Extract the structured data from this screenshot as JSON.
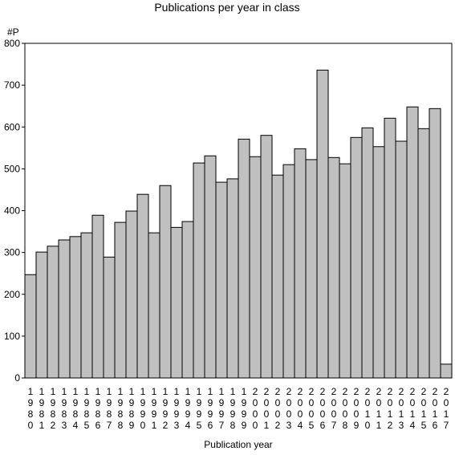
{
  "chart_data": {
    "type": "bar",
    "title": "Publications per year in class",
    "ylabel": "#P",
    "xlabel": "Publication year",
    "ylim": [
      0,
      800
    ],
    "yticks": [
      0,
      100,
      200,
      300,
      400,
      500,
      600,
      700,
      800
    ],
    "grid": false,
    "legend": "none",
    "colors": {
      "bar_fill": "#c0c0c0",
      "bar_stroke": "#000000"
    },
    "categories": [
      "1980",
      "1981",
      "1982",
      "1983",
      "1984",
      "1985",
      "1986",
      "1987",
      "1988",
      "1989",
      "1990",
      "1991",
      "1992",
      "1993",
      "1994",
      "1995",
      "1996",
      "1997",
      "1998",
      "1999",
      "2000",
      "2001",
      "2002",
      "2003",
      "2004",
      "2005",
      "2006",
      "2007",
      "2008",
      "2009",
      "2010",
      "2011",
      "2012",
      "2013",
      "2014",
      "2015",
      "2016",
      "2017"
    ],
    "values": [
      247,
      301,
      315,
      330,
      338,
      347,
      389,
      289,
      372,
      399,
      439,
      347,
      460,
      360,
      374,
      514,
      531,
      468,
      476,
      571,
      529,
      580,
      485,
      510,
      548,
      522,
      736,
      527,
      512,
      575,
      598,
      553,
      621,
      566,
      648,
      596,
      644,
      33
    ]
  }
}
